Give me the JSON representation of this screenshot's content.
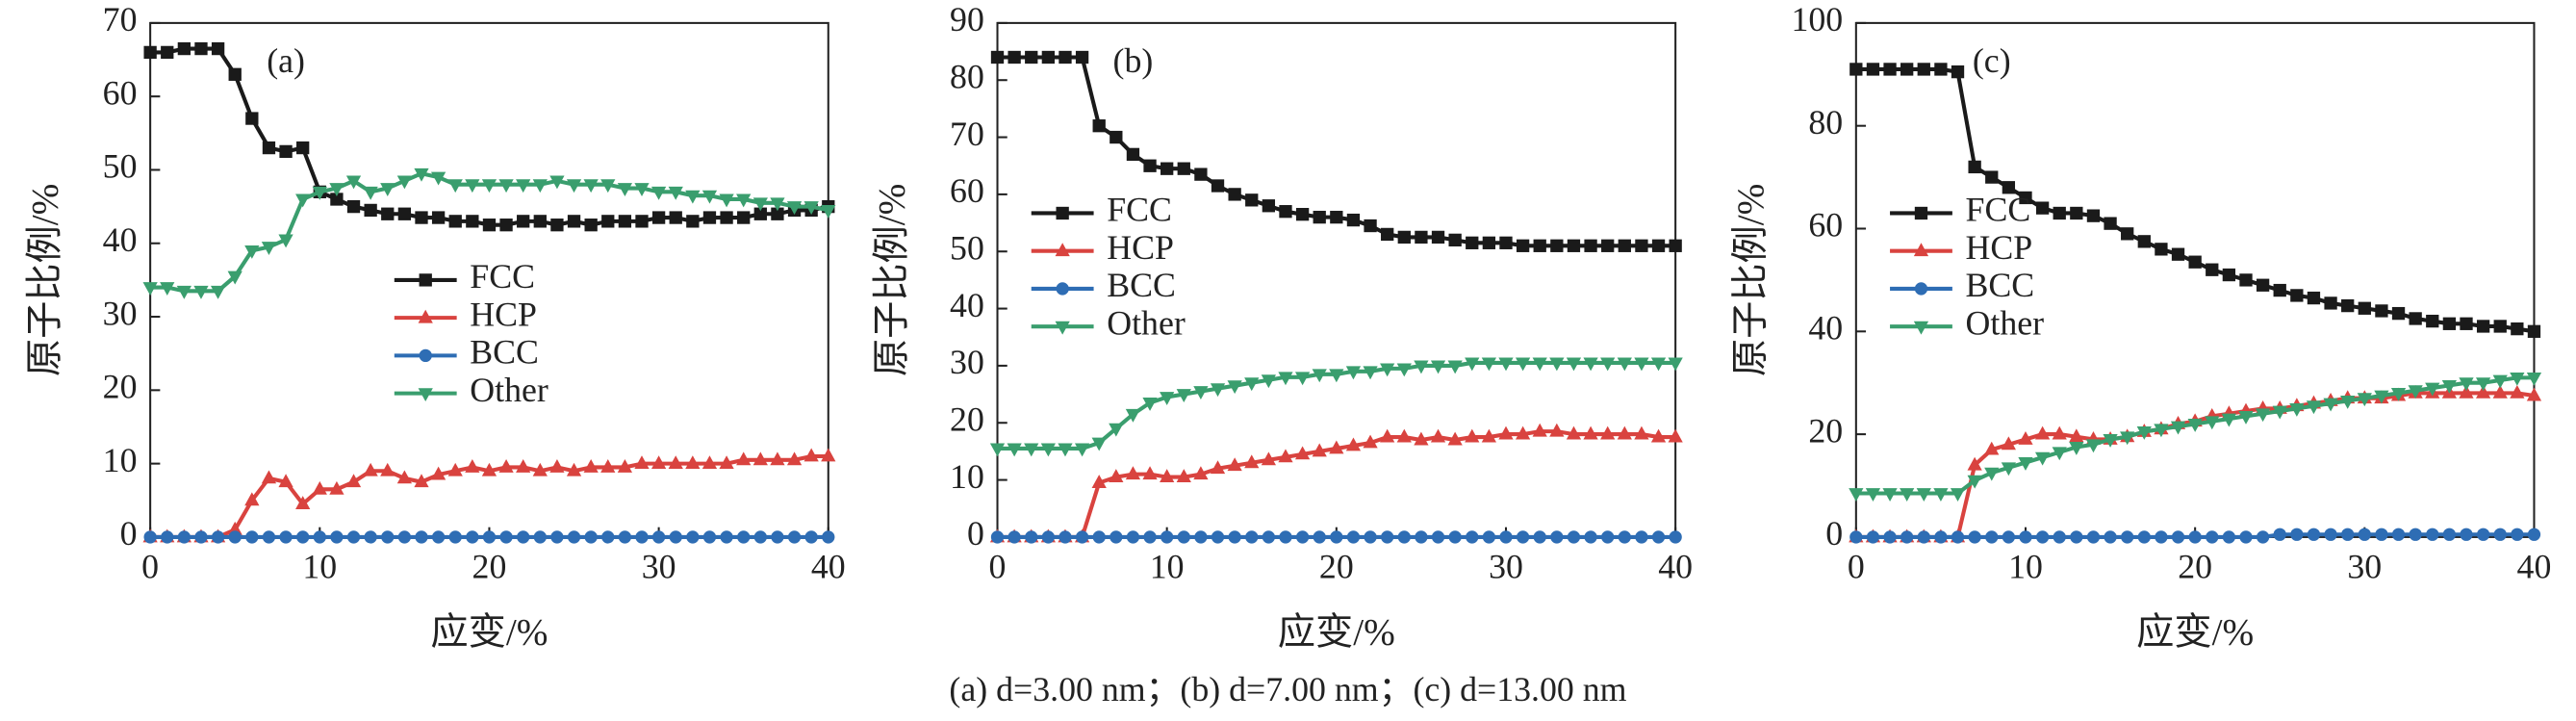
{
  "chart_data": [
    {
      "type": "line",
      "label": "(a)",
      "xlabel": "应变/%",
      "ylabel": "原子比例/%",
      "xlim": [
        0,
        40
      ],
      "ylim": [
        0,
        70
      ],
      "xticks": [
        0,
        10,
        20,
        30,
        40
      ],
      "yticks": [
        0,
        10,
        20,
        30,
        40,
        50,
        60,
        70
      ],
      "legend": "center",
      "x": [
        0,
        1,
        2,
        3,
        4,
        5,
        6,
        7,
        8,
        9,
        10,
        11,
        12,
        13,
        14,
        15,
        16,
        17,
        18,
        19,
        20,
        21,
        22,
        23,
        24,
        25,
        26,
        27,
        28,
        29,
        30,
        31,
        32,
        33,
        34,
        35,
        36,
        37,
        38,
        39,
        40
      ],
      "series": [
        {
          "name": "FCC",
          "color": "#1a1a1a",
          "marker": "square",
          "values": [
            66,
            66,
            66.5,
            66.5,
            66.5,
            63,
            57,
            53,
            52.5,
            53,
            47,
            46,
            45,
            44.5,
            44,
            44,
            43.5,
            43.5,
            43,
            43,
            42.5,
            42.5,
            43,
            43,
            42.5,
            43,
            42.5,
            43,
            43,
            43,
            43.5,
            43.5,
            43,
            43.5,
            43.5,
            43.5,
            44,
            44,
            44.5,
            44.5,
            45
          ]
        },
        {
          "name": "HCP",
          "color": "#d9433f",
          "marker": "triangle-up",
          "values": [
            0,
            0,
            0,
            0,
            0,
            1,
            5,
            8,
            7.5,
            4.5,
            6.5,
            6.5,
            7.5,
            9,
            9,
            8,
            7.5,
            8.5,
            9,
            9.5,
            9,
            9.5,
            9.5,
            9,
            9.5,
            9,
            9.5,
            9.5,
            9.5,
            10,
            10,
            10,
            10,
            10,
            10,
            10.5,
            10.5,
            10.5,
            10.5,
            11,
            11
          ]
        },
        {
          "name": "BCC",
          "color": "#2e6db4",
          "marker": "circle",
          "values": [
            0,
            0,
            0,
            0,
            0,
            0,
            0,
            0,
            0,
            0,
            0,
            0,
            0,
            0,
            0,
            0,
            0,
            0,
            0,
            0,
            0,
            0,
            0,
            0,
            0,
            0,
            0,
            0,
            0,
            0,
            0,
            0,
            0,
            0,
            0,
            0,
            0,
            0,
            0,
            0,
            0
          ]
        },
        {
          "name": "Other",
          "color": "#3a9e6e",
          "marker": "triangle-down",
          "values": [
            34,
            34,
            33.5,
            33.5,
            33.5,
            35.5,
            39,
            39.5,
            40.5,
            46,
            47,
            47.5,
            48.5,
            47,
            47.5,
            48.5,
            49.5,
            49,
            48,
            48,
            48,
            48,
            48,
            48,
            48.5,
            48,
            48,
            48,
            47.5,
            47.5,
            47,
            47,
            46.5,
            46.5,
            46,
            46,
            45.5,
            45.5,
            45,
            45,
            44.5
          ]
        }
      ]
    },
    {
      "type": "line",
      "label": "(b)",
      "xlabel": "应变/%",
      "ylabel": "原子比例/%",
      "xlim": [
        0,
        40
      ],
      "ylim": [
        0,
        90
      ],
      "xticks": [
        0,
        10,
        20,
        30,
        40
      ],
      "yticks": [
        0,
        10,
        20,
        30,
        40,
        50,
        60,
        70,
        80,
        90
      ],
      "legend": "center left",
      "x": [
        0,
        1,
        2,
        3,
        4,
        5,
        6,
        7,
        8,
        9,
        10,
        11,
        12,
        13,
        14,
        15,
        16,
        17,
        18,
        19,
        20,
        21,
        22,
        23,
        24,
        25,
        26,
        27,
        28,
        29,
        30,
        31,
        32,
        33,
        34,
        35,
        36,
        37,
        38,
        39,
        40
      ],
      "series": [
        {
          "name": "FCC",
          "color": "#1a1a1a",
          "marker": "square",
          "values": [
            84,
            84,
            84,
            84,
            84,
            84,
            72,
            70,
            67,
            65,
            64.5,
            64.5,
            63.5,
            61.5,
            60,
            59,
            58,
            57,
            56.5,
            56,
            56,
            55.5,
            54.5,
            53,
            52.5,
            52.5,
            52.5,
            52,
            51.5,
            51.5,
            51.5,
            51,
            51,
            51,
            51,
            51,
            51,
            51,
            51,
            51,
            51
          ]
        },
        {
          "name": "HCP",
          "color": "#d9433f",
          "marker": "triangle-up",
          "values": [
            0,
            0,
            0,
            0,
            0,
            0,
            9.5,
            10.5,
            11,
            11,
            10.5,
            10.5,
            11,
            12,
            12.5,
            13,
            13.5,
            14,
            14.5,
            15,
            15.5,
            16,
            16.5,
            17.5,
            17.5,
            17,
            17.5,
            17,
            17.5,
            17.5,
            18,
            18,
            18.5,
            18.5,
            18,
            18,
            18,
            18,
            18,
            17.5,
            17.5
          ]
        },
        {
          "name": "BCC",
          "color": "#2e6db4",
          "marker": "circle",
          "values": [
            0,
            0,
            0,
            0,
            0,
            0,
            0,
            0,
            0,
            0,
            0,
            0,
            0,
            0,
            0,
            0,
            0,
            0,
            0,
            0,
            0,
            0,
            0,
            0,
            0,
            0,
            0,
            0,
            0,
            0,
            0,
            0,
            0,
            0,
            0,
            0,
            0,
            0,
            0,
            0,
            0
          ]
        },
        {
          "name": "Other",
          "color": "#3a9e6e",
          "marker": "triangle-down",
          "values": [
            15.5,
            15.5,
            15.5,
            15.5,
            15.5,
            15.5,
            16.5,
            19,
            21.5,
            23.5,
            24.5,
            25,
            25.5,
            26,
            26.5,
            27,
            27.5,
            28,
            28,
            28.5,
            28.5,
            29,
            29,
            29.5,
            29.5,
            30,
            30,
            30,
            30.5,
            30.5,
            30.5,
            30.5,
            30.5,
            30.5,
            30.5,
            30.5,
            30.5,
            30.5,
            30.5,
            30.5,
            30.5
          ]
        }
      ]
    },
    {
      "type": "line",
      "label": "(c)",
      "xlabel": "应变/%",
      "ylabel": "原子比例/%",
      "xlim": [
        0,
        40
      ],
      "ylim": [
        0,
        100
      ],
      "xticks": [
        0,
        10,
        20,
        30,
        40
      ],
      "yticks": [
        0,
        20,
        40,
        60,
        80,
        100
      ],
      "legend": "center left",
      "x": [
        0,
        1,
        2,
        3,
        4,
        5,
        6,
        7,
        8,
        9,
        10,
        11,
        12,
        13,
        14,
        15,
        16,
        17,
        18,
        19,
        20,
        21,
        22,
        23,
        24,
        25,
        26,
        27,
        28,
        29,
        30,
        31,
        32,
        33,
        34,
        35,
        36,
        37,
        38,
        39,
        40
      ],
      "series": [
        {
          "name": "FCC",
          "color": "#1a1a1a",
          "marker": "square",
          "values": [
            91,
            91,
            91,
            91,
            91,
            91,
            90.5,
            72,
            70,
            68,
            66,
            64,
            63,
            63,
            62.5,
            61,
            59,
            57.5,
            56,
            55,
            53.5,
            52,
            51,
            50,
            49,
            48,
            47,
            46.5,
            45.5,
            45,
            44.5,
            44,
            43.5,
            42.5,
            42,
            41.5,
            41.5,
            41,
            41,
            40.5,
            40
          ]
        },
        {
          "name": "HCP",
          "color": "#d9433f",
          "marker": "triangle-up",
          "values": [
            0,
            0,
            0,
            0,
            0,
            0,
            0,
            14,
            17,
            18,
            19,
            20,
            20,
            19.5,
            19,
            19,
            19.5,
            20.5,
            21,
            22,
            22.5,
            23.5,
            24,
            24.5,
            25,
            25,
            25.5,
            26,
            26.5,
            27,
            27,
            27,
            27.5,
            28,
            28,
            28,
            28,
            28,
            28,
            28,
            27.5
          ]
        },
        {
          "name": "BCC",
          "color": "#2e6db4",
          "marker": "circle",
          "values": [
            0,
            0,
            0,
            0,
            0,
            0,
            0,
            0,
            0,
            0,
            0,
            0,
            0,
            0,
            0,
            0,
            0,
            0,
            0,
            0,
            0,
            0,
            0,
            0,
            0,
            0.5,
            0.5,
            0.5,
            0.5,
            0.5,
            0.5,
            0.5,
            0.5,
            0.5,
            0.5,
            0.5,
            0.5,
            0.5,
            0.5,
            0.5,
            0.5
          ]
        },
        {
          "name": "Other",
          "color": "#3a9e6e",
          "marker": "triangle-down",
          "values": [
            8.5,
            8.5,
            8.5,
            8.5,
            8.5,
            8.5,
            8.5,
            11,
            12.5,
            13.5,
            14.5,
            15.5,
            16.5,
            17.5,
            18,
            19,
            19.5,
            20.5,
            21,
            21.5,
            22,
            22.5,
            23,
            23.5,
            24,
            24.5,
            25,
            25.5,
            26,
            26.5,
            27,
            27.5,
            28,
            28.5,
            29,
            29.5,
            30,
            30,
            30.5,
            31,
            31
          ]
        }
      ]
    }
  ],
  "caption": "(a) d=3.00 nm；(b) d=7.00 nm；(c) d=13.00 nm"
}
